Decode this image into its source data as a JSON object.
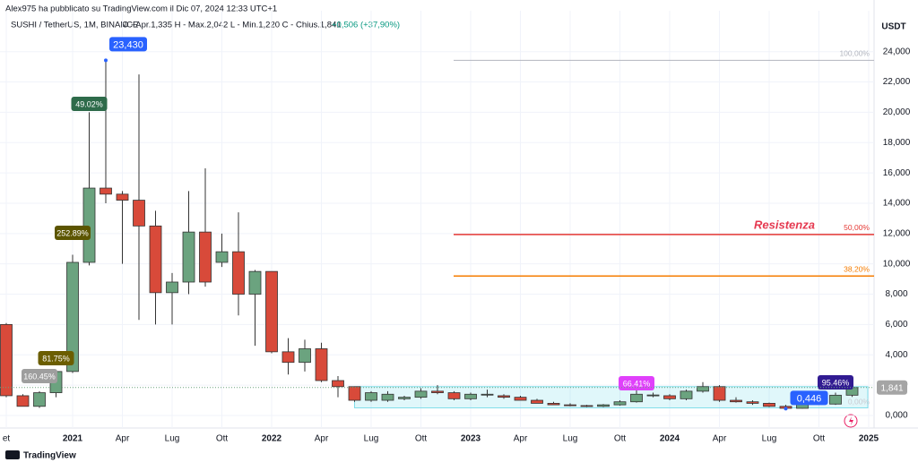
{
  "header": {
    "author": "Alex975 ha pubblicato su TradingView.com il Dic 07, 2024 12:33 UTC+1",
    "symbol": "SUSHI / TetherUS, 1M, BINANCE",
    "ohlc": "O - Apr.1,335  H - Max.2,042  L - Min.1,220  C - Chius.1,841",
    "change": "+0,506 (+37,90%)"
  },
  "footer": {
    "brand": "TradingView"
  },
  "chart_data": {
    "type": "candlestick",
    "y_unit": "USDT",
    "categories": [
      "et",
      null,
      null,
      null,
      "2021",
      null,
      null,
      "Apr",
      null,
      null,
      "Lug",
      null,
      null,
      "Ott",
      null,
      null,
      "2022",
      null,
      null,
      "Apr",
      null,
      null,
      "Lug",
      null,
      null,
      "Ott",
      null,
      null,
      "2023",
      null,
      null,
      "Apr",
      null,
      null,
      "Lug",
      null,
      null,
      "Ott",
      null,
      null,
      "2024",
      null,
      null,
      "Apr",
      null,
      null,
      "Lug",
      null,
      null,
      "Ott",
      null,
      null,
      "2025"
    ],
    "series": [
      {
        "name": "SUSHI / TetherUS",
        "up_color": "#6ba37f",
        "down_color": "#d84a3a",
        "open": [
          6.0,
          1.3,
          0.6,
          1.5,
          2.9,
          10.1,
          15.0,
          14.6,
          14.2,
          12.5,
          8.1,
          8.8,
          12.1,
          10.1,
          10.8,
          8.0,
          9.5,
          4.2,
          3.5,
          4.4,
          2.3,
          1.9,
          1.0,
          1.0,
          1.1,
          1.2,
          1.6,
          1.5,
          1.1,
          1.4,
          1.3,
          1.2,
          1.0,
          0.8,
          0.7,
          0.65,
          0.6,
          0.7,
          0.9,
          1.3,
          1.3,
          1.1,
          1.6,
          1.9,
          1.0,
          0.9,
          0.8,
          0.6,
          0.47,
          0.8,
          0.75,
          1.335,
          null
        ],
        "high": [
          6.1,
          1.4,
          1.6,
          3.0,
          10.6,
          20.0,
          23.43,
          14.8,
          22.5,
          13.5,
          9.4,
          14.8,
          16.3,
          12.0,
          13.4,
          9.6,
          9.5,
          5.1,
          5.0,
          4.8,
          2.6,
          1.9,
          1.6,
          1.6,
          1.3,
          1.8,
          2.0,
          1.6,
          1.5,
          1.7,
          1.4,
          1.3,
          1.1,
          0.9,
          0.8,
          0.7,
          0.75,
          1.0,
          1.8,
          1.5,
          1.4,
          1.7,
          2.2,
          2.0,
          1.2,
          1.0,
          0.85,
          0.7,
          0.85,
          0.9,
          1.5,
          2.042,
          null
        ],
        "low": [
          1.2,
          0.6,
          0.5,
          1.2,
          2.8,
          9.9,
          14.0,
          10.0,
          6.3,
          6.0,
          6.0,
          8.0,
          8.5,
          9.8,
          6.6,
          4.6,
          4.1,
          2.7,
          2.9,
          2.2,
          1.2,
          0.9,
          0.9,
          0.9,
          1.0,
          1.1,
          1.4,
          1.0,
          1.0,
          1.2,
          1.1,
          1.0,
          0.8,
          0.7,
          0.6,
          0.55,
          0.55,
          0.65,
          0.85,
          1.2,
          1.0,
          1.0,
          1.5,
          0.9,
          0.85,
          0.7,
          0.55,
          0.446,
          0.45,
          0.7,
          0.7,
          1.22,
          null
        ],
        "close": [
          1.3,
          0.6,
          1.5,
          2.9,
          10.1,
          15.0,
          14.6,
          14.2,
          12.5,
          8.1,
          8.8,
          12.1,
          8.8,
          10.8,
          8.0,
          9.5,
          4.2,
          3.5,
          4.4,
          2.3,
          1.9,
          1.0,
          1.5,
          1.4,
          1.2,
          1.6,
          1.5,
          1.1,
          1.4,
          1.4,
          1.2,
          1.0,
          0.8,
          0.7,
          0.65,
          0.6,
          0.7,
          0.9,
          1.4,
          1.35,
          1.1,
          1.6,
          1.9,
          1.0,
          0.9,
          0.8,
          0.6,
          0.47,
          0.8,
          0.75,
          1.335,
          1.841,
          null
        ]
      }
    ],
    "last_price_label": "1,841",
    "ylim": [
      -0.83,
      26.7
    ],
    "yticks": [
      {
        "value": 0,
        "label": "0,000"
      },
      {
        "value": 2,
        "label": "2,000"
      },
      {
        "value": 4,
        "label": "4,000"
      },
      {
        "value": 6,
        "label": "6,000"
      },
      {
        "value": 8,
        "label": "8,000"
      },
      {
        "value": 10,
        "label": "10,000"
      },
      {
        "value": 12,
        "label": "12,000"
      },
      {
        "value": 14,
        "label": "14,000"
      },
      {
        "value": 16,
        "label": "16,000"
      },
      {
        "value": 18,
        "label": "18,000"
      },
      {
        "value": 20,
        "label": "20,000"
      },
      {
        "value": 22,
        "label": "22,000"
      },
      {
        "value": 24,
        "label": "24,000"
      }
    ],
    "grid": true,
    "levels": [
      {
        "value": 23.43,
        "label": "100,00%",
        "color": "#b2b5be"
      },
      {
        "value": 11.94,
        "label": "50,00%",
        "color": "#e53935"
      },
      {
        "value": 9.2,
        "label": "38,20%",
        "color": "#f57c00"
      },
      {
        "value": 0.446,
        "label": "0,00%",
        "color": "#c8cbd2"
      }
    ],
    "level_note": "Resistenza",
    "zone": [
      0.5,
      1.9
    ],
    "price_marks": [
      {
        "value": 23.43,
        "label": "23,430"
      },
      {
        "value": 0.446,
        "label": "0,446"
      }
    ],
    "change_labels": [
      "160.45%",
      "81.75%",
      "252.89%",
      "49.02%",
      "66.41%",
      "95.46%"
    ]
  }
}
